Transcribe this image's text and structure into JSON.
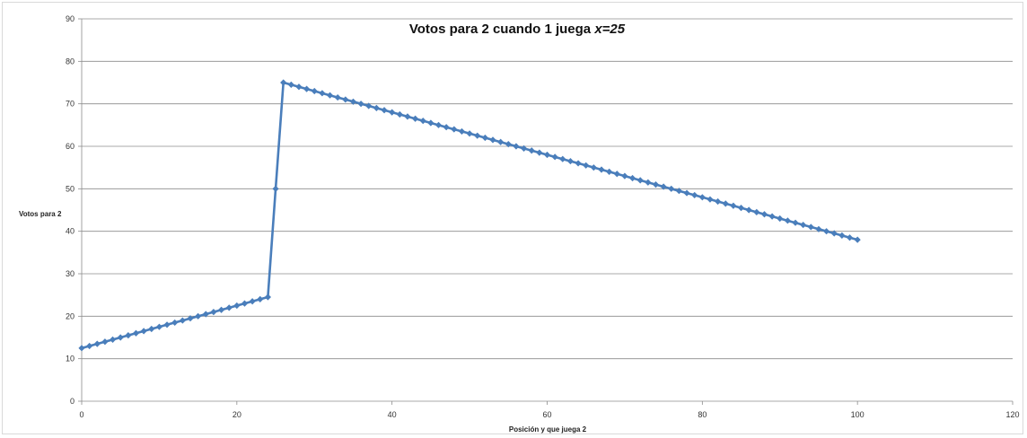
{
  "chart_data": {
    "type": "line",
    "title": "Votos para 2 cuando 1 juega x=25",
    "title_plain": "Votos para 2 cuando 1 juega ",
    "title_italic": "x=25",
    "xlabel": "Posición  y que juega  2",
    "ylabel": "Votos para 2",
    "xlim": [
      0,
      120
    ],
    "ylim": [
      0,
      90
    ],
    "x_ticks": [
      0,
      20,
      40,
      60,
      80,
      100,
      120
    ],
    "y_ticks": [
      0,
      10,
      20,
      30,
      40,
      50,
      60,
      70,
      80,
      90
    ],
    "grid": "horizontal",
    "legend": "none",
    "series": [
      {
        "color": "#4a7ebb",
        "marker": "diamond",
        "x": [
          0,
          1,
          2,
          3,
          4,
          5,
          6,
          7,
          8,
          9,
          10,
          11,
          12,
          13,
          14,
          15,
          16,
          17,
          18,
          19,
          20,
          21,
          22,
          23,
          24,
          25,
          26,
          27,
          28,
          29,
          30,
          31,
          32,
          33,
          34,
          35,
          36,
          37,
          38,
          39,
          40,
          41,
          42,
          43,
          44,
          45,
          46,
          47,
          48,
          49,
          50,
          51,
          52,
          53,
          54,
          55,
          56,
          57,
          58,
          59,
          60,
          61,
          62,
          63,
          64,
          65,
          66,
          67,
          68,
          69,
          70,
          71,
          72,
          73,
          74,
          75,
          76,
          77,
          78,
          79,
          80,
          81,
          82,
          83,
          84,
          85,
          86,
          87,
          88,
          89,
          90,
          91,
          92,
          93,
          94,
          95,
          96,
          97,
          98,
          99,
          100
        ],
        "y": [
          12.5,
          13,
          13.5,
          14,
          14.5,
          15,
          15.5,
          16,
          16.5,
          17,
          17.5,
          18,
          18.5,
          19,
          19.5,
          20,
          20.5,
          21,
          21.5,
          22,
          22.5,
          23,
          23.5,
          24,
          24.5,
          50,
          75,
          74.5,
          74,
          73.5,
          73,
          72.5,
          72,
          71.5,
          71,
          70.5,
          70,
          69.5,
          69,
          68.5,
          68,
          67.5,
          67,
          66.5,
          66,
          65.5,
          65,
          64.5,
          64,
          63.5,
          63,
          62.5,
          62,
          61.5,
          61,
          60.5,
          60,
          59.5,
          59,
          58.5,
          58,
          57.5,
          57,
          56.5,
          56,
          55.5,
          55,
          54.5,
          54,
          53.5,
          53,
          52.5,
          52,
          51.5,
          51,
          50.5,
          50,
          49.5,
          49,
          48.5,
          48,
          47.5,
          47,
          46.5,
          46,
          45.5,
          45,
          44.5,
          44,
          43.5,
          43,
          42.5,
          42,
          41.5,
          41,
          40.5,
          40,
          39.5,
          39,
          38.5,
          38
        ]
      }
    ]
  }
}
